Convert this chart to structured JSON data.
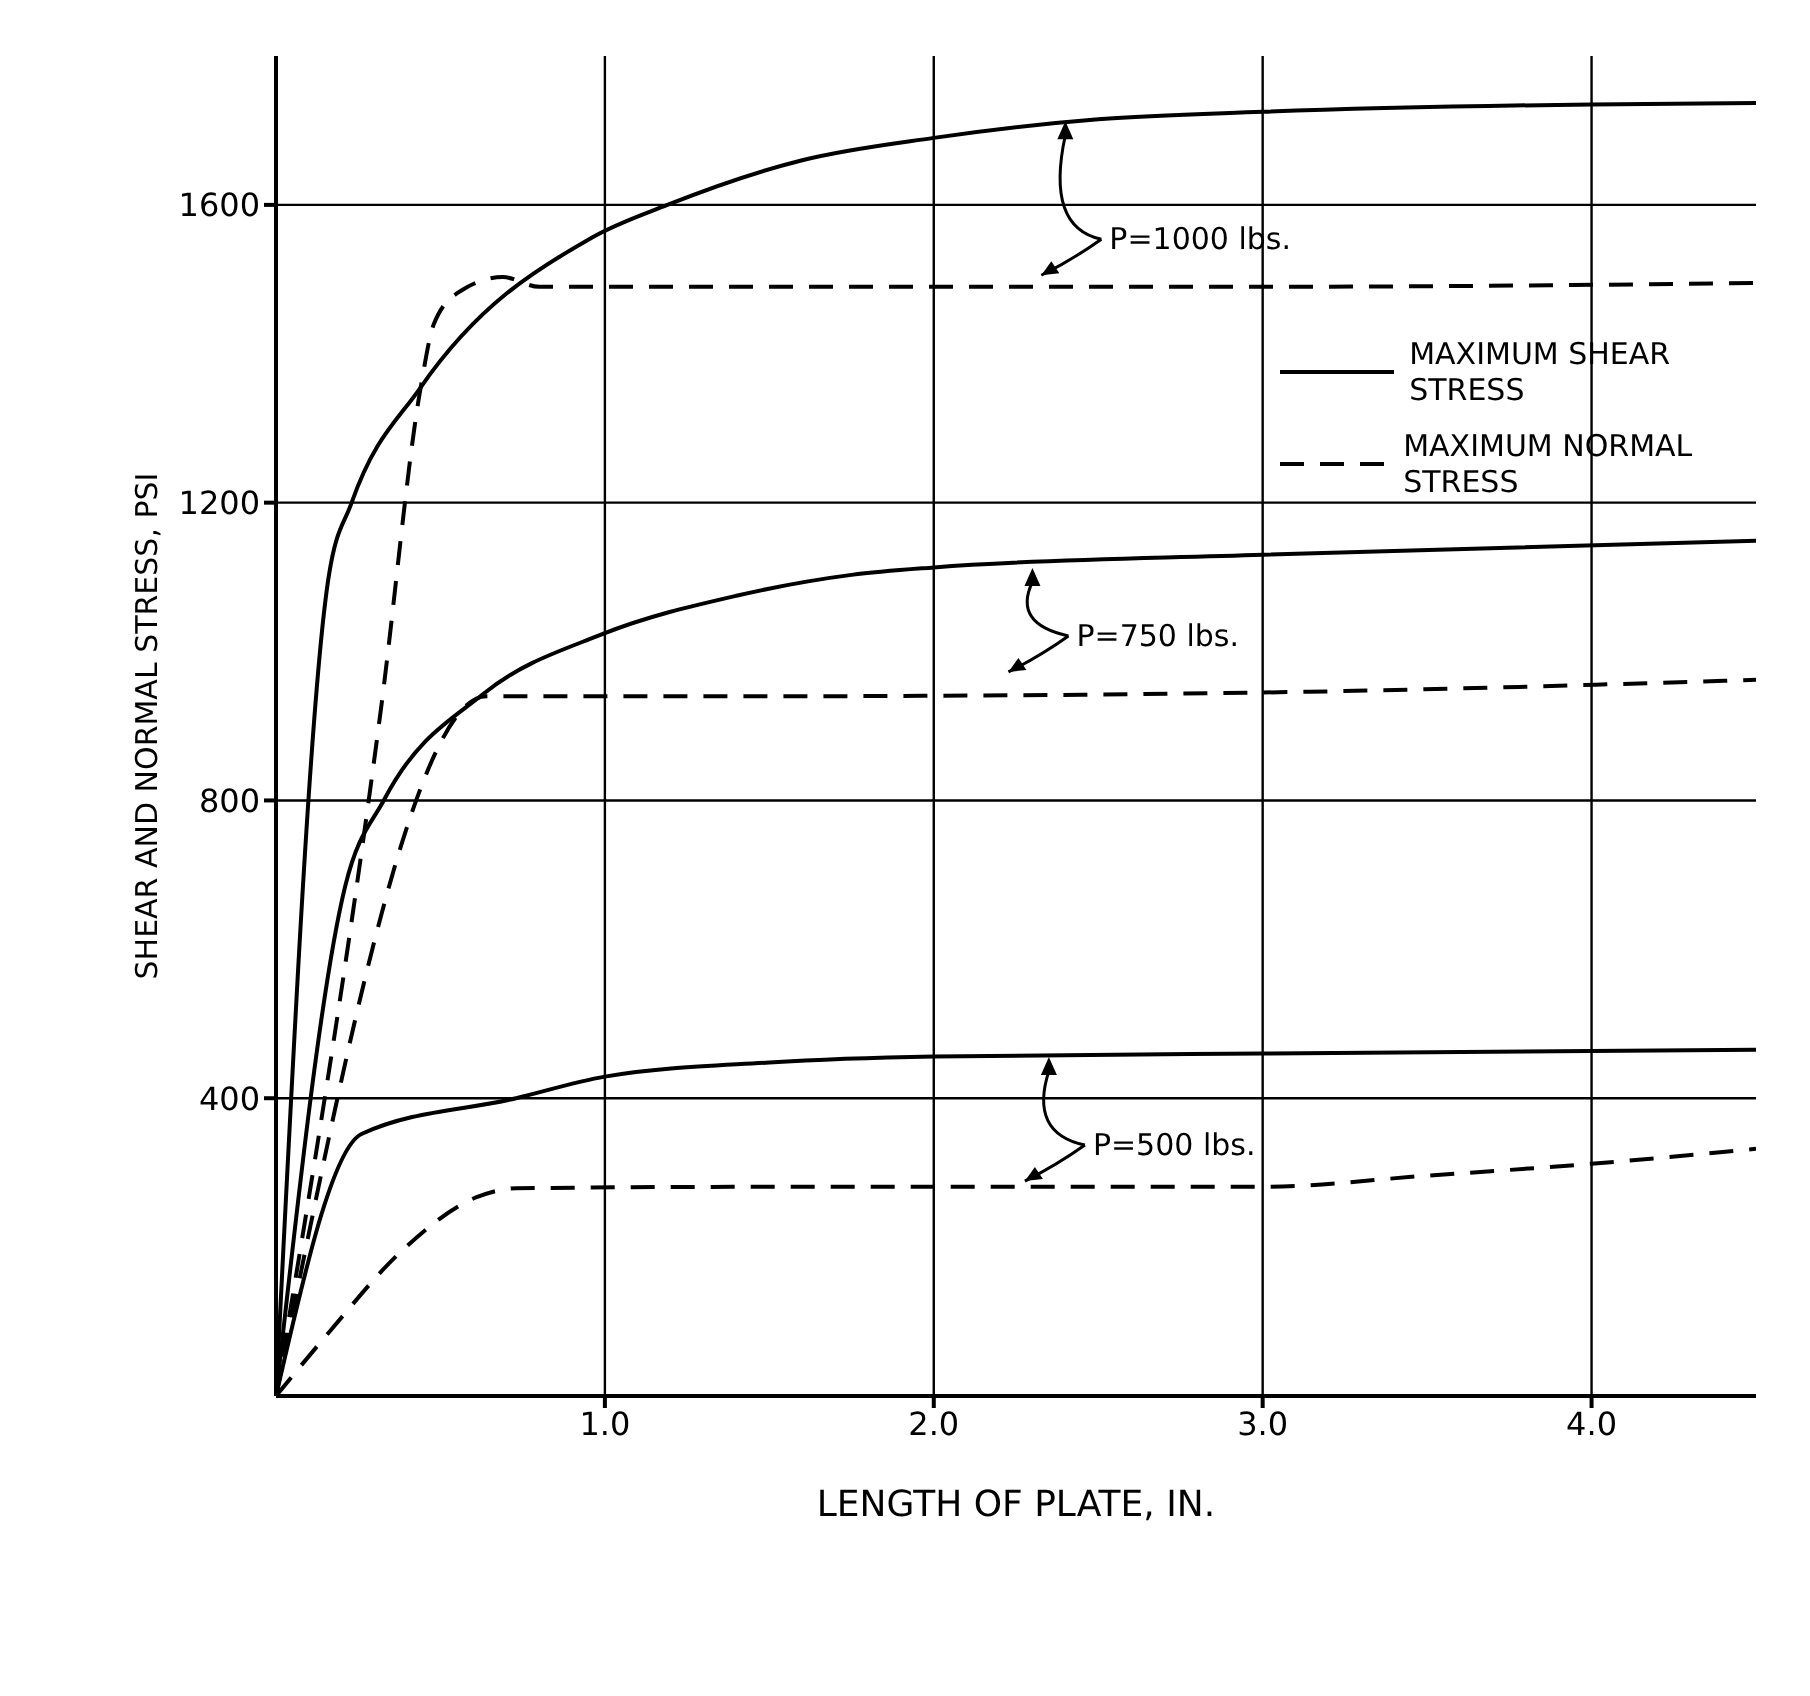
{
  "chart_data": {
    "type": "line",
    "xlabel": "LENGTH OF PLATE, IN.",
    "ylabel": "SHEAR AND NORMAL STRESS, PSI",
    "xlim": [
      0,
      4.5
    ],
    "ylim": [
      0,
      1800
    ],
    "xticks": [
      {
        "value": 1,
        "label": "1.0"
      },
      {
        "value": 2,
        "label": "2.0"
      },
      {
        "value": 3,
        "label": "3.0"
      },
      {
        "value": 4,
        "label": "4.0"
      }
    ],
    "yticks": [
      400,
      800,
      1200,
      1600
    ],
    "grid": true,
    "legend": "top right",
    "marker": "none",
    "series": [
      {
        "name": "MAXIMUM SHEAR STRESS",
        "color": "#000000",
        "line_style": "solid",
        "x": [
          0,
          0.16,
          0.23,
          0.44,
          0.96,
          1.19,
          1.6,
          2.0,
          2.5,
          3.0,
          4.0,
          4.5
        ],
        "values": [
          0,
          1100,
          1200,
          1355,
          1556,
          1600,
          1660,
          1690,
          1715,
          1725,
          1735,
          1737
        ]
      },
      {
        "name": "MAXIMUM NORMAL STRESS",
        "color": "#000000",
        "line_style": "dashed",
        "x": [
          0,
          0.32,
          0.44,
          0.48,
          0.56,
          0.69,
          0.8,
          1.5,
          3.0,
          4.5
        ],
        "values": [
          0,
          926,
          1355,
          1440,
          1484,
          1503,
          1490,
          1490,
          1490,
          1495
        ]
      },
      {
        "color": "#000000",
        "line_style": "solid",
        "x": [
          0,
          0.21,
          0.33,
          0.63,
          0.99,
          1.4,
          1.75,
          2.0,
          3.0,
          4.5
        ],
        "values": [
          0,
          684,
          802,
          943,
          1023,
          1075,
          1103,
          1113,
          1130,
          1149
        ]
      },
      {
        "color": "#000000",
        "line_style": "dashed",
        "x": [
          0,
          0.64,
          1.5,
          3.0,
          4.5
        ],
        "values": [
          0,
          940,
          940,
          945,
          962
        ]
      },
      {
        "color": "#000000",
        "line_style": "solid",
        "x": [
          0,
          0.26,
          0.73,
          1.0,
          1.5,
          2.0,
          3.0,
          4.5
        ],
        "values": [
          0,
          352,
          400,
          429,
          448,
          456,
          460,
          465
        ]
      },
      {
        "color": "#000000",
        "line_style": "dashed",
        "x": [
          0,
          0.16,
          0.38,
          0.61,
          0.73,
          1.5,
          3.0,
          3.5,
          4.0,
          4.5
        ],
        "values": [
          0,
          85,
          194,
          267,
          279,
          281,
          281,
          296,
          312,
          332
        ]
      }
    ],
    "annotations": [
      {
        "text": "P=1000 lbs.",
        "x": 2.4,
        "y": 1715
      },
      {
        "text": "P=750 lbs.",
        "x": 2.3,
        "y": 1115
      },
      {
        "text": "P=500 lbs.",
        "x": 2.35,
        "y": 458
      }
    ]
  }
}
